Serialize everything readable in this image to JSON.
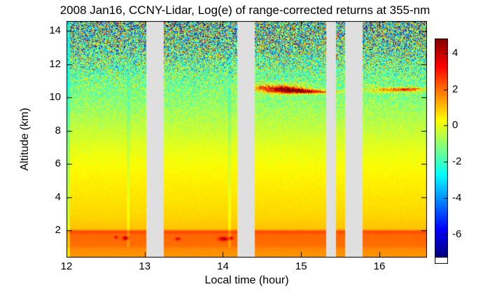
{
  "chart_data": {
    "type": "heatmap",
    "title": "2008 Jan16, CCNY-Lidar, Log(e) of range-corrected returns at 355-nm",
    "xlabel": "Local time (hour)",
    "ylabel": "Altitude (km)",
    "x_range": [
      12,
      16.6
    ],
    "y_range": [
      0.4,
      14.6
    ],
    "x_ticks": [
      12,
      13,
      14,
      15,
      16
    ],
    "y_ticks": [
      2,
      4,
      6,
      8,
      10,
      12,
      14
    ],
    "colormap": "jet",
    "value_range": [
      -7.2,
      4.8
    ],
    "colorbar_ticks": [
      4,
      2,
      0,
      -2,
      -4,
      -6
    ],
    "gap_color": "#dfdfdf",
    "data_gaps_hours": [
      [
        13.02,
        13.24
      ],
      [
        14.18,
        14.4
      ],
      [
        15.32,
        15.44
      ],
      [
        15.56,
        15.78
      ]
    ],
    "background_profile": [
      [
        0.4,
        1.5
      ],
      [
        0.9,
        1.7
      ],
      [
        1.1,
        2.0
      ],
      [
        1.75,
        2.1
      ],
      [
        1.95,
        2.5
      ],
      [
        2.1,
        1.0
      ],
      [
        3,
        0.75
      ],
      [
        4,
        0.6
      ],
      [
        5,
        0.45
      ],
      [
        6,
        0.25
      ],
      [
        7,
        0.0
      ],
      [
        8,
        -0.35
      ],
      [
        9,
        -0.7
      ],
      [
        10,
        -1.1
      ],
      [
        11,
        -1.3
      ],
      [
        12,
        -1.45
      ],
      [
        13,
        -1.55
      ],
      [
        14.6,
        -1.65
      ]
    ],
    "noise_sigma_profile": [
      [
        0.4,
        0.05
      ],
      [
        2,
        0.05
      ],
      [
        4,
        0.07
      ],
      [
        6,
        0.12
      ],
      [
        8,
        0.25
      ],
      [
        9,
        0.45
      ],
      [
        10,
        0.7
      ],
      [
        11,
        1.1
      ],
      [
        12,
        1.8
      ],
      [
        13,
        2.6
      ],
      [
        14.6,
        3.2
      ]
    ],
    "cloud_features": [
      {
        "hour": 14.82,
        "alt": 10.45,
        "sigma_h": 0.13,
        "sigma_a": 0.12,
        "amp": 5.5
      },
      {
        "hour": 14.68,
        "alt": 10.55,
        "sigma_h": 0.25,
        "sigma_a": 0.2,
        "amp": 2.8
      },
      {
        "hour": 15.05,
        "alt": 10.38,
        "sigma_h": 0.12,
        "sigma_a": 0.08,
        "amp": 4.5
      },
      {
        "hour": 15.3,
        "alt": 10.35,
        "sigma_h": 0.15,
        "sigma_a": 0.07,
        "amp": 3.0
      },
      {
        "hour": 16.35,
        "alt": 10.5,
        "sigma_h": 0.14,
        "sigma_a": 0.07,
        "amp": 4.2
      },
      {
        "hour": 16.05,
        "alt": 10.45,
        "sigma_h": 0.18,
        "sigma_a": 0.12,
        "amp": 1.8
      },
      {
        "hour": 14.5,
        "alt": 10.6,
        "sigma_h": 0.1,
        "sigma_a": 0.1,
        "amp": 1.5
      }
    ],
    "surface_hotspots": [
      {
        "hour": 12.75,
        "alt": 1.55,
        "sigma_h": 0.025,
        "sigma_a": 0.07,
        "amp": 2.4
      },
      {
        "hour": 12.63,
        "alt": 1.6,
        "sigma_h": 0.015,
        "sigma_a": 0.05,
        "amp": 1.6
      },
      {
        "hour": 13.42,
        "alt": 1.5,
        "sigma_h": 0.02,
        "sigma_a": 0.06,
        "amp": 2.0
      },
      {
        "hour": 14.0,
        "alt": 1.5,
        "sigma_h": 0.04,
        "sigma_a": 0.08,
        "amp": 2.4
      },
      {
        "hour": 14.1,
        "alt": 1.55,
        "sigma_h": 0.02,
        "sigma_a": 0.06,
        "amp": 1.8
      }
    ],
    "vertical_artifacts": [
      {
        "hour": 12.015,
        "half_width": 0.022,
        "delta": -1.0,
        "min_alt": 0.4,
        "noise_scale": 0.25
      },
      {
        "hour": 12.78,
        "half_width": 0.018,
        "delta": -0.5,
        "min_alt": 1.0,
        "noise_scale": 0.9
      },
      {
        "hour": 14.08,
        "half_width": 0.02,
        "delta": -0.55,
        "min_alt": 1.0,
        "noise_scale": 0.9
      }
    ]
  }
}
